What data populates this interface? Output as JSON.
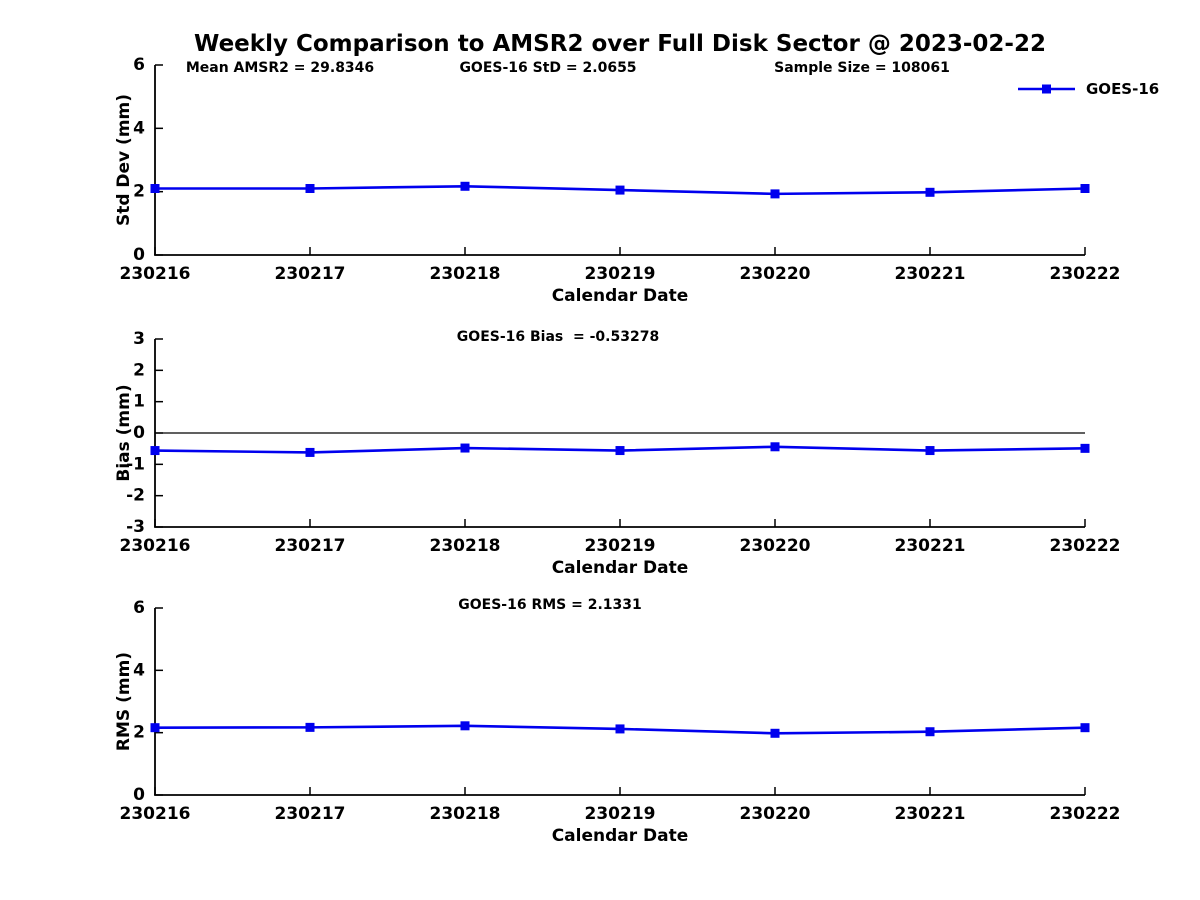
{
  "title": "Weekly Comparison to AMSR2 over Full Disk Sector @ 2023-02-22",
  "legend": {
    "label": "GOES-16"
  },
  "colors": {
    "series": "#0000EE",
    "axis": "#000000",
    "text": "#000000",
    "zero_line": "#000000",
    "background": "#FFFFFF"
  },
  "stats": {
    "mean_amsr2": 29.8346,
    "goes16_std": 2.0655,
    "sample_size": 108061,
    "goes16_bias": -0.53278,
    "goes16_rms": 2.1331
  },
  "chart_data": [
    {
      "type": "line",
      "categories": [
        "230216",
        "230217",
        "230218",
        "230219",
        "230220",
        "230221",
        "230222"
      ],
      "series": [
        {
          "name": "GOES-16",
          "values": [
            2.1,
            2.1,
            2.17,
            2.05,
            1.93,
            1.98,
            2.1
          ]
        }
      ],
      "title": "",
      "xlabel": "Calendar Date",
      "ylabel": "Std Dev (mm)",
      "ylim": [
        0,
        6
      ],
      "yticks": [
        0,
        2,
        4,
        6
      ],
      "grid": false,
      "zero_line": false,
      "legend_position": "top-right-outside",
      "annotations": [
        "Mean AMSR2 = 29.8346",
        "GOES-16 StD = 2.0655",
        "Sample Size = 108061"
      ]
    },
    {
      "type": "line",
      "categories": [
        "230216",
        "230217",
        "230218",
        "230219",
        "230220",
        "230221",
        "230222"
      ],
      "series": [
        {
          "name": "GOES-16",
          "values": [
            -0.56,
            -0.62,
            -0.48,
            -0.56,
            -0.44,
            -0.56,
            -0.49
          ]
        }
      ],
      "title": "",
      "xlabel": "Calendar Date",
      "ylabel": "Bias (mm)",
      "ylim": [
        -3,
        3
      ],
      "yticks": [
        -3,
        -2,
        -1,
        0,
        1,
        2,
        3
      ],
      "grid": false,
      "zero_line": true,
      "annotations": [
        "GOES-16 Bias  = -0.53278"
      ]
    },
    {
      "type": "line",
      "categories": [
        "230216",
        "230217",
        "230218",
        "230219",
        "230220",
        "230221",
        "230222"
      ],
      "series": [
        {
          "name": "GOES-16",
          "values": [
            2.16,
            2.17,
            2.22,
            2.12,
            1.98,
            2.03,
            2.16
          ]
        }
      ],
      "title": "",
      "xlabel": "Calendar Date",
      "ylabel": "RMS (mm)",
      "ylim": [
        0,
        6
      ],
      "yticks": [
        0,
        2,
        4,
        6
      ],
      "grid": false,
      "zero_line": false,
      "annotations": [
        "GOES-16 RMS = 2.1331"
      ]
    }
  ]
}
